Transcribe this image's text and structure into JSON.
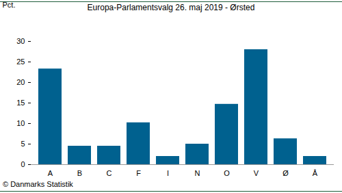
{
  "chart_data": {
    "type": "bar",
    "title": "Europa-Parlamentsvalg 26. maj 2019 - Ørsted",
    "caption": "© Danmarks Statistik",
    "y_label": "Pct.",
    "categories": [
      "A",
      "B",
      "C",
      "F",
      "I",
      "N",
      "O",
      "V",
      "Ø",
      "Å"
    ],
    "values": [
      23.3,
      4.5,
      4.5,
      10.2,
      2.0,
      5.0,
      14.7,
      28.0,
      6.3,
      2.0
    ],
    "color": "#00618f",
    "ylim": [
      0,
      30
    ],
    "yticks": [
      0,
      5,
      10,
      15,
      20,
      25,
      30
    ],
    "grid": false
  }
}
